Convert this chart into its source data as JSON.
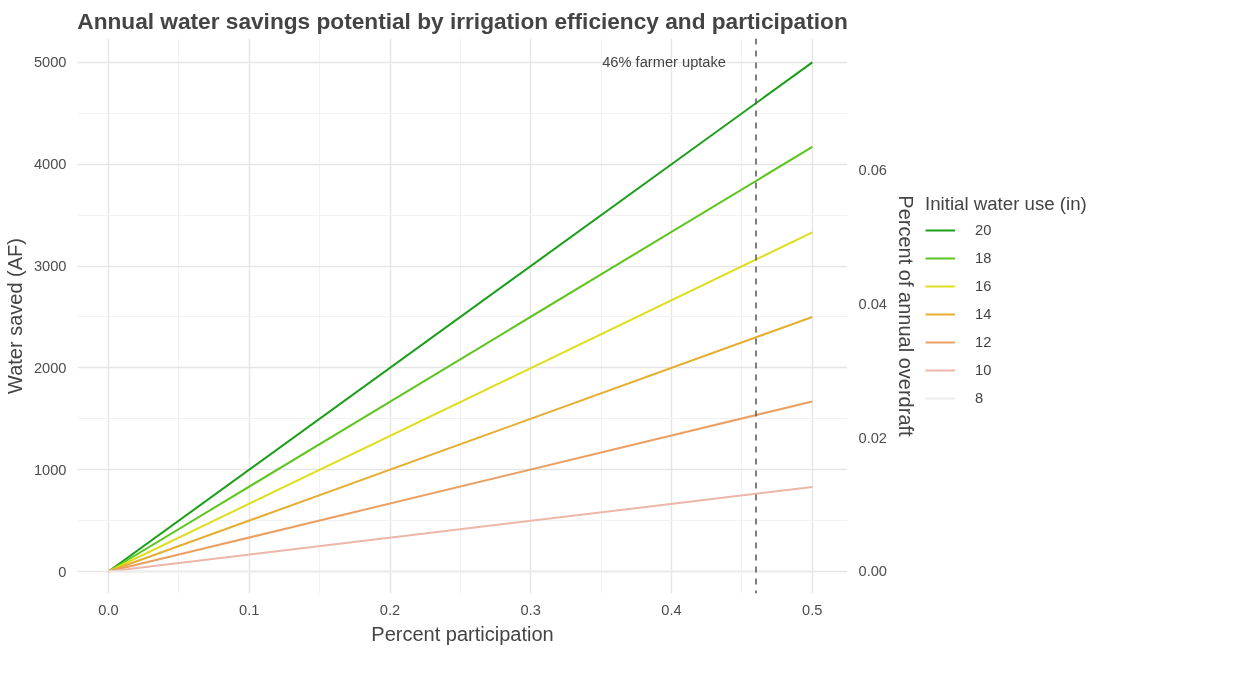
{
  "chart_data": {
    "type": "line",
    "title": "Annual water savings potential by irrigation efficiency and participation",
    "xlabel": "Percent participation",
    "ylabel": "Water saved (AF)",
    "y2label": "Percent of annual overdraft",
    "legend_title": "Initial water use (in)",
    "x": [
      0,
      0.5
    ],
    "series": [
      {
        "name": "20",
        "color": "#1a9e1a",
        "values": [
          0,
          5000
        ]
      },
      {
        "name": "18",
        "color": "#5cc41c",
        "values": [
          0,
          4170
        ]
      },
      {
        "name": "16",
        "color": "#dede1e",
        "values": [
          0,
          3330
        ]
      },
      {
        "name": "14",
        "color": "#e6ae30",
        "values": [
          0,
          2500
        ]
      },
      {
        "name": "12",
        "color": "#eaa062",
        "values": [
          0,
          1670
        ]
      },
      {
        "name": "10",
        "color": "#ecb6a8",
        "values": [
          0,
          830
        ]
      },
      {
        "name": "8",
        "color": "#ececec",
        "values": [
          0,
          0
        ]
      }
    ],
    "xlim": [
      -0.022,
      0.525
    ],
    "xticks": [
      {
        "value": 0,
        "label": "0.0"
      },
      {
        "value": 0.1,
        "label": "0.1"
      },
      {
        "value": 0.2,
        "label": "0.2"
      },
      {
        "value": 0.3,
        "label": "0.3"
      },
      {
        "value": 0.4,
        "label": "0.4"
      },
      {
        "value": 0.5,
        "label": "0.5"
      }
    ],
    "ylim": [
      -216,
      5235
    ],
    "yticks": [
      0,
      1000,
      2000,
      3000,
      4000,
      5000
    ],
    "y2lim": [
      -0.0033,
      0.0796
    ],
    "y2ticks": [
      {
        "value": 0,
        "label": "0.00"
      },
      {
        "value": 0.02,
        "label": "0.02"
      },
      {
        "value": 0.04,
        "label": "0.04"
      },
      {
        "value": 0.06,
        "label": "0.06"
      }
    ],
    "ref_lines": [
      {
        "axis": "x",
        "value": 0.46,
        "label": "46% farmer uptake",
        "color": "#555555",
        "line_style": "dashed"
      }
    ],
    "grid": true,
    "legend": "right",
    "marker": "none",
    "line_style": "solid"
  }
}
